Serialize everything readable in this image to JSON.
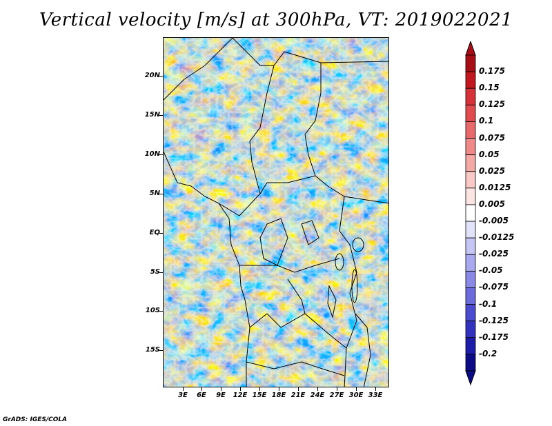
{
  "title": "Vertical velocity [m/s] at 300hPa, VT: 2019022021",
  "credit": "GrADS: IGES/COLA",
  "latitude_labels": [
    "20N",
    "15N",
    "10N",
    "5N",
    "EQ",
    "5S",
    "10S",
    "15S"
  ],
  "longitude_labels": [
    "3E",
    "6E",
    "9E",
    "12E",
    "15E",
    "18E",
    "21E",
    "24E",
    "27E",
    "30E",
    "33E"
  ],
  "colorbar": {
    "labels": [
      "0.175",
      "0.15",
      "0.125",
      "0.1",
      "0.075",
      "0.05",
      "0.025",
      "0.0125",
      "0.005",
      "-0.005",
      "-0.0125",
      "-0.025",
      "-0.05",
      "-0.075",
      "-0.1",
      "-0.125",
      "-0.175",
      "-0.2"
    ],
    "colors": [
      "#a50f15",
      "#c0181e",
      "#d6323a",
      "#e04b50",
      "#e8696b",
      "#ee8a89",
      "#f3a9a6",
      "#f8c9c5",
      "#fbe4e1",
      "#ffffff",
      "#e2e2fb",
      "#c6c6f5",
      "#a9a9ef",
      "#8a8ae6",
      "#6b6bdc",
      "#4c4cd0",
      "#3232bf",
      "#1c1ca6",
      "#0b0b86"
    ]
  },
  "map": {
    "projection_extent": "lon 0E-35E, lat 20S-24N",
    "colors": {
      "coast": "#000000",
      "red": "#e86a6a",
      "blue": "#7a7ae6"
    }
  }
}
